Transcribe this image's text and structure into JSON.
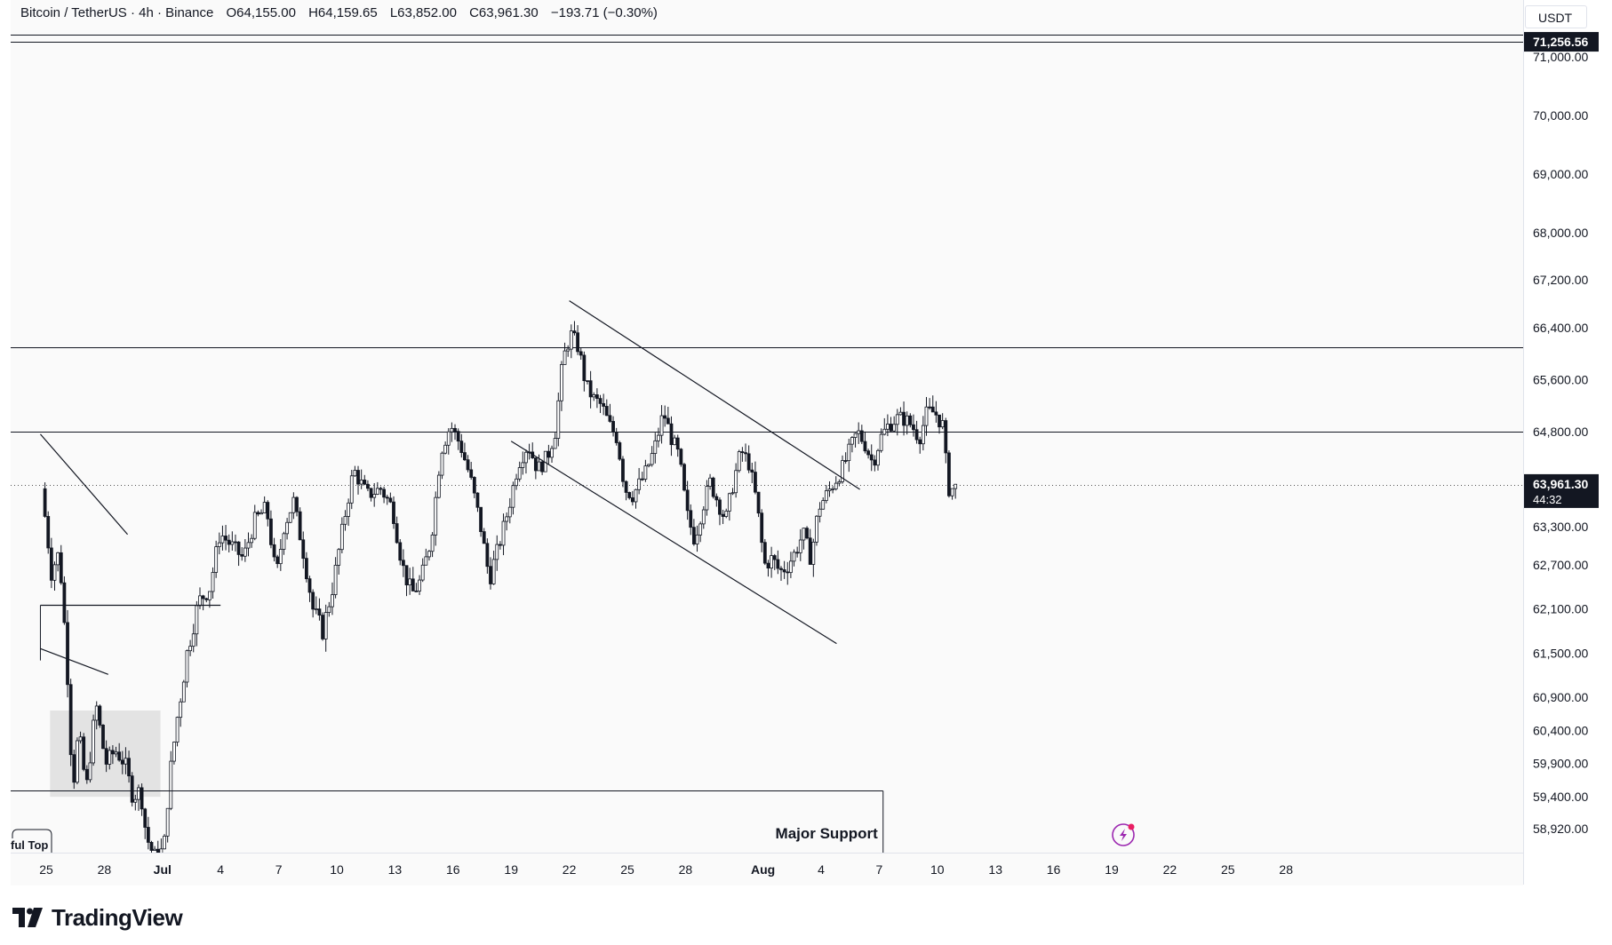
{
  "legend": {
    "symbol": "Bitcoin / TetherUS · 4h · Binance",
    "open": "O64,155.00",
    "high": "H64,159.65",
    "low": "L63,852.00",
    "close": "C63,961.30",
    "change": "−193.71 (−0.30%)"
  },
  "currency": "USDT",
  "brand": "TradingView",
  "colors": {
    "line": "#131722",
    "bg": "#fafafa",
    "zone": "#d9d9d9",
    "accent": "#9c27b0",
    "bolt": "#e91e63"
  },
  "chart_data": {
    "type": "candlestick",
    "symbol": "BTCUSDT",
    "interval": "4h",
    "y_ticks": [
      71000,
      70000,
      69000,
      68000,
      67200,
      66400,
      65600,
      64800,
      64000,
      63300,
      62700,
      62100,
      61500,
      60900,
      60400,
      59900,
      59400,
      58920
    ],
    "y_tick_labels": [
      "71,000.00",
      "70,000.00",
      "69,000.00",
      "68,000.00",
      "67,200.00",
      "66,400.00",
      "65,600.00",
      "64,800.00",
      "64,000.00",
      "63,300.00",
      "62,700.00",
      "62,100.00",
      "61,500.00",
      "60,900.00",
      "60,400.00",
      "59,900.00",
      "59,400.00",
      "58,920.00"
    ],
    "x_ticks": [
      {
        "label": "25",
        "day": 0
      },
      {
        "label": "28",
        "day": 3
      },
      {
        "label": "Jul",
        "day": 6
      },
      {
        "label": "4",
        "day": 9
      },
      {
        "label": "7",
        "day": 12
      },
      {
        "label": "10",
        "day": 15
      },
      {
        "label": "13",
        "day": 18
      },
      {
        "label": "16",
        "day": 21
      },
      {
        "label": "19",
        "day": 24
      },
      {
        "label": "22",
        "day": 27
      },
      {
        "label": "25",
        "day": 30
      },
      {
        "label": "28",
        "day": 33
      },
      {
        "label": "Aug",
        "day": 37
      },
      {
        "label": "4",
        "day": 40
      },
      {
        "label": "7",
        "day": 43
      },
      {
        "label": "10",
        "day": 46
      },
      {
        "label": "13",
        "day": 49
      },
      {
        "label": "16",
        "day": 52
      },
      {
        "label": "19",
        "day": 55
      },
      {
        "label": "22",
        "day": 58
      },
      {
        "label": "25",
        "day": 61
      },
      {
        "label": "28",
        "day": 64
      }
    ],
    "price_labels": [
      {
        "value": 71256.56,
        "text": "71,256.56"
      },
      {
        "value": 63961.3,
        "text": "63,961.30",
        "sub": "44:32"
      }
    ],
    "last_price": 63961.3,
    "horizontal_lines": [
      {
        "price": 71380
      },
      {
        "price": 71256.56
      },
      {
        "price": 66100
      },
      {
        "price": 64800
      }
    ],
    "annotation": {
      "text": "Major Support",
      "top_price": 59500
    },
    "partial_label": "ful Top",
    "ohlc_path": [
      [
        -0.3,
        63900
      ],
      [
        0.2,
        62600
      ],
      [
        0.6,
        62900
      ],
      [
        1.0,
        61400
      ],
      [
        1.3,
        59500
      ],
      [
        1.6,
        60400
      ],
      [
        2.0,
        59500
      ],
      [
        2.5,
        60800
      ],
      [
        3.0,
        59900
      ],
      [
        3.5,
        60100
      ],
      [
        4.0,
        59900
      ],
      [
        4.4,
        59400
      ],
      [
        4.8,
        59500
      ],
      [
        5.1,
        58800
      ],
      [
        5.5,
        58500
      ],
      [
        6.0,
        58600
      ],
      [
        6.3,
        59700
      ],
      [
        6.7,
        60600
      ],
      [
        7.2,
        61500
      ],
      [
        7.8,
        62200
      ],
      [
        8.4,
        62400
      ],
      [
        8.9,
        63200
      ],
      [
        9.5,
        63000
      ],
      [
        10.1,
        62800
      ],
      [
        10.7,
        63400
      ],
      [
        11.3,
        63600
      ],
      [
        11.8,
        62500
      ],
      [
        12.2,
        63300
      ],
      [
        12.7,
        63700
      ],
      [
        13.2,
        62900
      ],
      [
        13.7,
        62100
      ],
      [
        14.2,
        61800
      ],
      [
        14.8,
        62500
      ],
      [
        15.3,
        63400
      ],
      [
        15.8,
        64200
      ],
      [
        16.5,
        63800
      ],
      [
        17.2,
        63900
      ],
      [
        17.8,
        63600
      ],
      [
        18.3,
        62700
      ],
      [
        18.8,
        62300
      ],
      [
        19.3,
        62500
      ],
      [
        19.8,
        63100
      ],
      [
        20.3,
        64500
      ],
      [
        20.8,
        64900
      ],
      [
        21.3,
        64600
      ],
      [
        21.8,
        64100
      ],
      [
        22.3,
        63400
      ],
      [
        22.8,
        62500
      ],
      [
        23.3,
        63000
      ],
      [
        23.8,
        63600
      ],
      [
        24.3,
        64300
      ],
      [
        24.8,
        64600
      ],
      [
        25.3,
        64200
      ],
      [
        25.8,
        64400
      ],
      [
        26.2,
        64800
      ],
      [
        26.6,
        65900
      ],
      [
        27.0,
        66300
      ],
      [
        27.4,
        66100
      ],
      [
        27.8,
        65500
      ],
      [
        28.2,
        65300
      ],
      [
        28.6,
        65200
      ],
      [
        29.0,
        64900
      ],
      [
        29.4,
        64700
      ],
      [
        29.8,
        63900
      ],
      [
        30.2,
        63800
      ],
      [
        30.8,
        64100
      ],
      [
        31.3,
        64500
      ],
      [
        31.8,
        65100
      ],
      [
        32.2,
        64700
      ],
      [
        32.6,
        64400
      ],
      [
        33.0,
        63500
      ],
      [
        33.4,
        63100
      ],
      [
        33.8,
        63600
      ],
      [
        34.2,
        64000
      ],
      [
        34.6,
        63700
      ],
      [
        35.0,
        63400
      ],
      [
        35.4,
        64000
      ],
      [
        35.8,
        64500
      ],
      [
        36.2,
        64300
      ],
      [
        36.6,
        63700
      ],
      [
        37.0,
        62700
      ],
      [
        37.4,
        62800
      ],
      [
        37.8,
        62600
      ],
      [
        38.2,
        62700
      ],
      [
        38.6,
        62900
      ],
      [
        39.0,
        63200
      ],
      [
        39.4,
        62800
      ],
      [
        39.8,
        63600
      ],
      [
        40.2,
        63800
      ],
      [
        40.6,
        64000
      ],
      [
        41.0,
        64200
      ],
      [
        41.4,
        64500
      ],
      [
        41.8,
        64800
      ],
      [
        42.2,
        64600
      ],
      [
        42.6,
        64300
      ],
      [
        43.0,
        64700
      ],
      [
        43.4,
        64900
      ],
      [
        43.8,
        65000
      ],
      [
        44.2,
        65000
      ],
      [
        44.6,
        64900
      ],
      [
        45.0,
        64700
      ],
      [
        45.4,
        65100
      ],
      [
        45.8,
        65100
      ],
      [
        46.2,
        64900
      ],
      [
        46.5,
        63900
      ],
      [
        46.8,
        63900
      ],
      [
        47.0,
        63960
      ]
    ],
    "trendlines": [
      {
        "from": [
          27.0,
          66850
        ],
        "to": [
          42.0,
          63890
        ]
      },
      {
        "from": [
          24.0,
          64650
        ],
        "to": [
          40.8,
          61630
        ]
      },
      {
        "from": [
          -0.3,
          64760
        ],
        "to": [
          4.2,
          63180
        ]
      },
      {
        "from": [
          -0.3,
          61560
        ],
        "to": [
          3.2,
          61210
        ]
      },
      {
        "from": [
          -0.3,
          62150
        ],
        "to": [
          9.0,
          62150
        ]
      }
    ],
    "zones": [
      {
        "start_day": 0.2,
        "end_day": 5.9,
        "top": 60700,
        "bottom": 59400
      }
    ]
  }
}
